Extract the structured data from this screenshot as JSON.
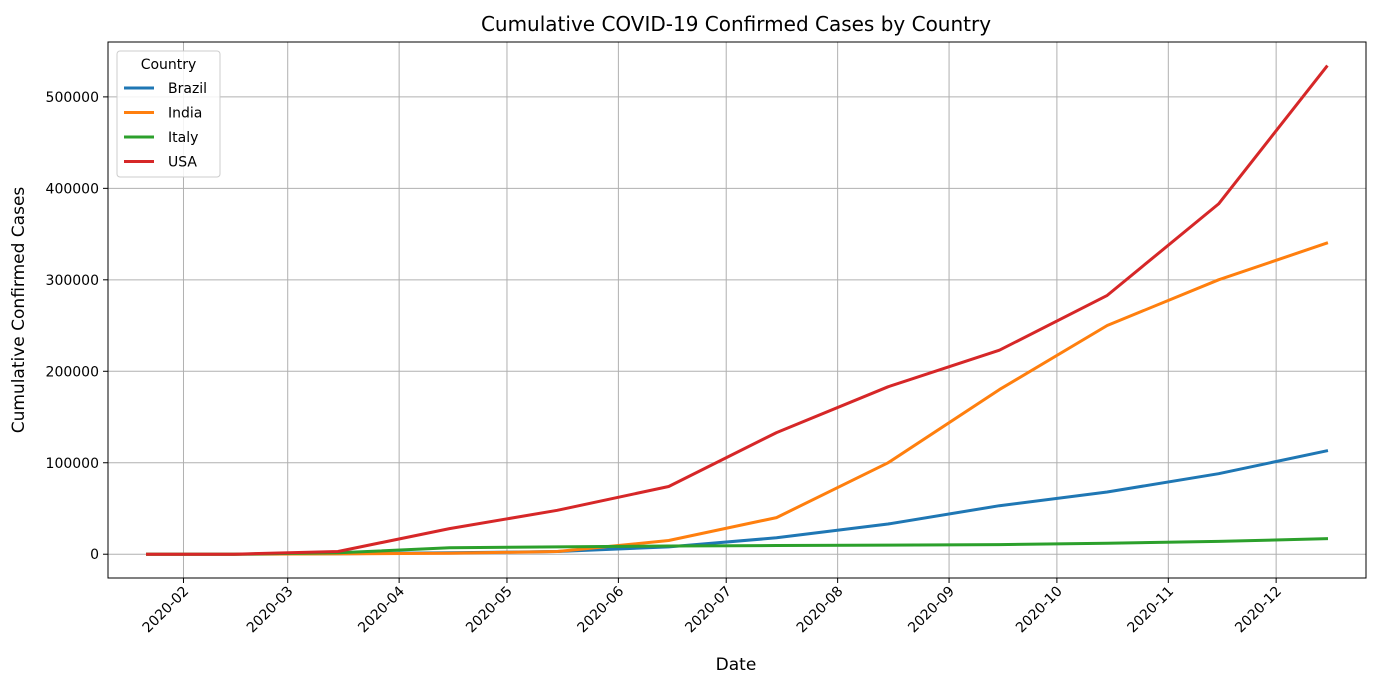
{
  "chart_data": {
    "type": "line",
    "title": "Cumulative COVID-19 Confirmed Cases by Country",
    "xlabel": "Date",
    "ylabel": "Cumulative Confirmed Cases",
    "x": [
      "2020-01-22",
      "2020-02-15",
      "2020-03-15",
      "2020-04-15",
      "2020-05-15",
      "2020-06-15",
      "2020-07-15",
      "2020-08-15",
      "2020-09-15",
      "2020-10-15",
      "2020-11-15",
      "2020-12-15"
    ],
    "x_ticks": [
      "2020-02",
      "2020-03",
      "2020-04",
      "2020-05",
      "2020-06",
      "2020-07",
      "2020-08",
      "2020-09",
      "2020-10",
      "2020-11",
      "2020-12"
    ],
    "y_ticks": [
      0,
      100000,
      200000,
      300000,
      400000,
      500000
    ],
    "ylim": [
      -26000,
      560000
    ],
    "xlim": [
      "2020-01-11",
      "2020-12-26"
    ],
    "grid": true,
    "legend": {
      "title": "Country",
      "placement": "upper left"
    },
    "series": [
      {
        "name": "Brazil",
        "color": "#1f77b4",
        "values": [
          0,
          0,
          500,
          1500,
          3000,
          8000,
          18000,
          33000,
          53000,
          68000,
          88000,
          113000
        ]
      },
      {
        "name": "India",
        "color": "#ff7f0e",
        "values": [
          0,
          0,
          300,
          1000,
          3000,
          15000,
          40000,
          100000,
          180000,
          250000,
          300000,
          340000
        ]
      },
      {
        "name": "Italy",
        "color": "#2ca02c",
        "values": [
          0,
          0,
          1500,
          7000,
          8000,
          9000,
          9500,
          10000,
          10500,
          12000,
          14000,
          17000
        ]
      },
      {
        "name": "USA",
        "color": "#d62728",
        "values": [
          0,
          0,
          3000,
          28000,
          48000,
          74000,
          133000,
          183000,
          223000,
          283000,
          383000,
          533000
        ]
      }
    ]
  }
}
